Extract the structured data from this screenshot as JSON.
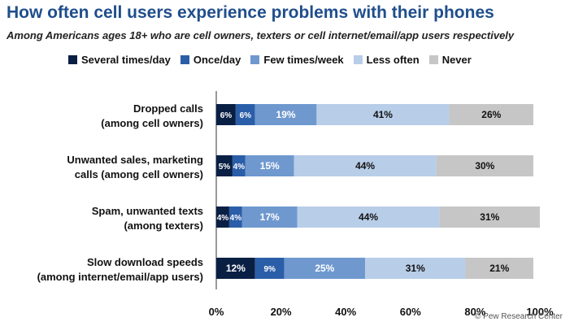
{
  "title": "How often cell users experience problems with their phones",
  "subtitle": "Among Americans ages 18+ who are cell owners, texters or cell internet/email/app users respectively",
  "source": "© Pew Research Center",
  "colors": [
    "#0a1f44",
    "#2b5ea8",
    "#6f98cf",
    "#b8cde8",
    "#c6c6c6"
  ],
  "label_colors": [
    "#ffffff",
    "#ffffff",
    "#ffffff",
    "#111111",
    "#111111"
  ],
  "chart_data": {
    "type": "bar",
    "orientation": "horizontal",
    "stacked": true,
    "categories": [
      [
        "Dropped calls",
        "(among cell owners)"
      ],
      [
        "Unwanted sales, marketing",
        "calls (among cell owners)"
      ],
      [
        "Spam, unwanted texts",
        "(among texters)"
      ],
      [
        "Slow download speeds",
        "(among internet/email/app users)"
      ]
    ],
    "series": [
      {
        "name": "Several times/day",
        "values": [
          6,
          5,
          4,
          12
        ]
      },
      {
        "name": "Once/day",
        "values": [
          6,
          4,
          4,
          9
        ]
      },
      {
        "name": "Few times/week",
        "values": [
          19,
          15,
          17,
          25
        ]
      },
      {
        "name": "Less often",
        "values": [
          41,
          44,
          44,
          31
        ]
      },
      {
        "name": "Never",
        "values": [
          26,
          30,
          31,
          21
        ]
      }
    ],
    "xlim": [
      0,
      100
    ],
    "xticks": [
      "0%",
      "20%",
      "40%",
      "60%",
      "80%",
      "100%"
    ],
    "legend": "top",
    "grid": false
  }
}
